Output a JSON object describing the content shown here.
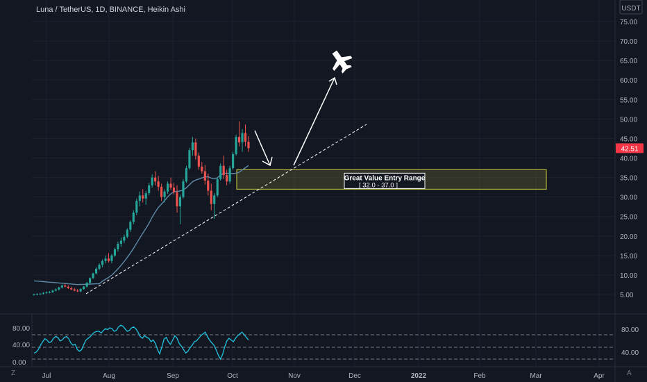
{
  "header": {
    "title": "Luna / TetherUS, 1D, BINANCE, Heikin Ashi"
  },
  "price_axis": {
    "currency": "USDT",
    "ticks": [
      "75.00",
      "70.00",
      "65.00",
      "60.00",
      "55.00",
      "50.00",
      "45.00",
      "40.00",
      "35.00",
      "30.00",
      "25.00",
      "20.00",
      "15.00",
      "10.00",
      "5.00"
    ],
    "last_price": "42.51",
    "last_price_color": "#f23645"
  },
  "time_axis": {
    "labels": [
      "Jul",
      "Aug",
      "Sep",
      "Oct",
      "Nov",
      "Dec",
      "2022",
      "Feb",
      "Mar",
      "Apr"
    ]
  },
  "indicator": {
    "left_ticks": [
      "80.00",
      "40.00",
      "0.00"
    ],
    "right_ticks": [
      "80.00",
      "40.00"
    ],
    "line_color": "#21c5e0"
  },
  "annotation": {
    "zone_title": "Great Value Entry Range",
    "zone_range": "[ 32.0 - 37.0 ]",
    "zone_low": 32.0,
    "zone_high": 37.0,
    "zone_color": "#b5b83c"
  },
  "colors": {
    "up": "#26a69a",
    "down": "#ef5350",
    "ma": "#5d8aa8"
  },
  "corner": {
    "left_icon": "Z",
    "right_icon": "A"
  },
  "chart_data": {
    "type": "candlestick",
    "ylim": [
      0,
      80
    ],
    "series": [
      {
        "name": "",
        "values": []
      }
    ],
    "candles": [
      [
        4.9,
        5.2,
        4.7,
        5.0
      ],
      [
        5.0,
        5.3,
        4.8,
        5.1
      ],
      [
        5.1,
        5.4,
        4.9,
        5.2
      ],
      [
        5.2,
        5.6,
        5.0,
        5.4
      ],
      [
        5.4,
        5.8,
        5.2,
        5.5
      ],
      [
        5.5,
        5.9,
        5.3,
        5.6
      ],
      [
        5.6,
        6.2,
        5.4,
        6.0
      ],
      [
        6.0,
        6.6,
        5.8,
        6.3
      ],
      [
        6.3,
        7.0,
        6.0,
        6.8
      ],
      [
        6.8,
        7.6,
        6.5,
        7.3
      ],
      [
        7.3,
        7.8,
        6.8,
        7.0
      ],
      [
        7.0,
        7.4,
        6.4,
        6.6
      ],
      [
        6.6,
        7.0,
        6.1,
        6.3
      ],
      [
        6.3,
        6.7,
        5.8,
        6.0
      ],
      [
        6.0,
        6.4,
        5.6,
        5.8
      ],
      [
        5.8,
        6.6,
        5.6,
        6.4
      ],
      [
        6.4,
        7.2,
        6.2,
        7.0
      ],
      [
        7.0,
        8.2,
        6.8,
        8.0
      ],
      [
        8.0,
        9.4,
        7.8,
        9.2
      ],
      [
        9.2,
        10.6,
        9.0,
        10.4
      ],
      [
        10.4,
        12.0,
        10.2,
        11.6
      ],
      [
        11.6,
        13.0,
        11.2,
        12.6
      ],
      [
        12.6,
        14.0,
        12.0,
        13.6
      ],
      [
        13.6,
        15.0,
        13.0,
        14.2
      ],
      [
        14.2,
        15.6,
        13.2,
        13.6
      ],
      [
        13.6,
        15.4,
        13.0,
        15.0
      ],
      [
        15.0,
        17.0,
        14.6,
        16.6
      ],
      [
        16.6,
        18.6,
        16.0,
        18.0
      ],
      [
        18.0,
        19.6,
        17.2,
        18.8
      ],
      [
        18.8,
        20.4,
        18.2,
        19.8
      ],
      [
        19.8,
        22.0,
        19.4,
        21.6
      ],
      [
        21.6,
        24.0,
        21.0,
        23.6
      ],
      [
        23.6,
        26.6,
        23.0,
        26.0
      ],
      [
        26.0,
        29.6,
        25.4,
        29.0
      ],
      [
        29.0,
        31.4,
        27.6,
        30.4
      ],
      [
        30.4,
        32.0,
        28.6,
        29.6
      ],
      [
        29.6,
        31.6,
        28.0,
        31.0
      ],
      [
        31.0,
        33.6,
        30.4,
        33.0
      ],
      [
        33.0,
        35.8,
        32.4,
        35.0
      ],
      [
        35.0,
        36.6,
        33.0,
        34.0
      ],
      [
        34.0,
        35.4,
        31.6,
        32.6
      ],
      [
        32.6,
        33.4,
        29.0,
        30.0
      ],
      [
        30.0,
        32.0,
        28.6,
        31.4
      ],
      [
        31.4,
        34.0,
        30.8,
        33.4
      ],
      [
        33.4,
        35.0,
        31.8,
        32.4
      ],
      [
        32.4,
        33.6,
        30.6,
        31.2
      ],
      [
        31.2,
        33.0,
        26.0,
        27.6
      ],
      [
        27.6,
        30.6,
        23.0,
        30.0
      ],
      [
        30.0,
        34.6,
        29.6,
        34.0
      ],
      [
        34.0,
        38.0,
        33.6,
        37.4
      ],
      [
        37.4,
        42.6,
        37.0,
        42.0
      ],
      [
        42.0,
        45.4,
        40.6,
        44.0
      ],
      [
        44.0,
        45.0,
        39.6,
        40.6
      ],
      [
        40.6,
        41.4,
        37.0,
        37.8
      ],
      [
        37.8,
        39.0,
        36.0,
        36.6
      ],
      [
        36.6,
        38.2,
        33.2,
        34.2
      ],
      [
        34.2,
        36.0,
        30.4,
        31.6
      ],
      [
        31.6,
        33.4,
        26.6,
        28.2
      ],
      [
        28.2,
        31.0,
        24.4,
        30.4
      ],
      [
        30.4,
        35.0,
        30.0,
        34.6
      ],
      [
        34.6,
        38.6,
        34.2,
        38.0
      ],
      [
        38.0,
        40.6,
        34.6,
        35.6
      ],
      [
        35.6,
        37.0,
        33.0,
        34.0
      ],
      [
        34.0,
        38.0,
        33.4,
        37.4
      ],
      [
        37.4,
        41.6,
        37.0,
        41.0
      ],
      [
        41.0,
        46.0,
        40.6,
        45.4
      ],
      [
        45.4,
        49.4,
        43.0,
        44.0
      ],
      [
        44.0,
        47.4,
        41.6,
        46.4
      ],
      [
        46.4,
        48.6,
        43.0,
        44.2
      ],
      [
        44.2,
        45.6,
        41.6,
        42.51
      ]
    ],
    "rsi": [
      22,
      24,
      30,
      40,
      48,
      55,
      52,
      46,
      48,
      56,
      60,
      58,
      50,
      52,
      58,
      60,
      55,
      45,
      40,
      42,
      30,
      26,
      30,
      42,
      52,
      56,
      60,
      66,
      70,
      72,
      72,
      68,
      74,
      78,
      76,
      80,
      78,
      72,
      74,
      82,
      86,
      84,
      78,
      72,
      74,
      80,
      82,
      78,
      70,
      60,
      56,
      62,
      58,
      56,
      48,
      52,
      44,
      30,
      20,
      36,
      54,
      58,
      48,
      42,
      52,
      62,
      56,
      44,
      38,
      30,
      22,
      26,
      34,
      40,
      48,
      50,
      56,
      62,
      66,
      70,
      60,
      52,
      46,
      40,
      30,
      18,
      8,
      18,
      36,
      50,
      56,
      52,
      48,
      56,
      62,
      66,
      70,
      64,
      58,
      52
    ]
  }
}
